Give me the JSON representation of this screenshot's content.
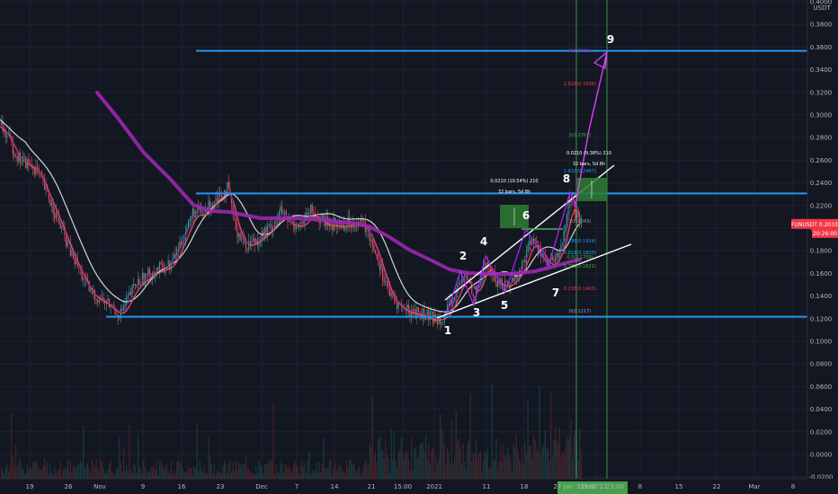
{
  "chart_data": {
    "type": "candlestick",
    "title": "",
    "y_axis": {
      "min": -0.02,
      "max": 0.41,
      "currency": "USDT",
      "tick_labels": [
        "0.4000",
        "0.3800",
        "0.3600",
        "0.3400",
        "0.3200",
        "0.3000",
        "0.2800",
        "0.2600",
        "0.2400",
        "0.2200",
        "0.2000",
        "0.1800",
        "0.1600",
        "0.1400",
        "0.1200",
        "0.1000",
        "0.0800",
        "0.0600",
        "0.0400",
        "0.0200",
        "0.0000",
        "-0.0200"
      ]
    },
    "x_axis": {
      "tick_labels": [
        "19",
        "26",
        "Nov",
        "9",
        "16",
        "23",
        "Dec",
        "7",
        "14",
        "21",
        "15:00",
        "2021",
        "11",
        "18",
        "27 Jan '21",
        "15:00",
        "Feb '21",
        "23:00",
        "8",
        "15",
        "22",
        "Mar",
        "8"
      ]
    },
    "horizontal_levels": [
      {
        "value": 0.3566,
        "label": "0.3566",
        "color": "#2196f3"
      },
      {
        "value": 0.2307,
        "label": "0.2307",
        "color": "#2196f3"
      },
      {
        "value": 0.1217,
        "label": "0.1217",
        "color": "#2196f3"
      }
    ],
    "current_price": {
      "value": 0.2033,
      "label": "FUNUSDT 0.2033",
      "countdown": "20:26:00",
      "color": "#f23645"
    },
    "wave_labels": [
      {
        "text": "1",
        "date": "2021-01-04",
        "price": 0.105
      },
      {
        "text": "2",
        "date": "2021-01-10",
        "price": 0.172
      },
      {
        "text": "3",
        "date": "2021-01-12",
        "price": 0.115
      },
      {
        "text": "4",
        "date": "2021-01-16",
        "price": 0.185
      },
      {
        "text": "5",
        "date": "2021-01-19",
        "price": 0.12
      },
      {
        "text": "6",
        "date": "2021-01-20",
        "price": 0.207
      },
      {
        "text": "7",
        "date": "2021-01-24",
        "price": 0.134
      },
      {
        "text": "8",
        "date": "2021-01-25",
        "price": 0.237
      },
      {
        "text": "9",
        "date": "2021-01-26",
        "price": 0.365
      }
    ],
    "annotations": [
      {
        "text": "0.0210 (10.54%) 210"
      },
      {
        "text": "32 bars, 5d 8h"
      },
      {
        "text": "0.0210 (9.38%) 210"
      },
      {
        "text": "32 bars, 5d 8h"
      }
    ],
    "fib_labels": [
      {
        "text": "4(0.3519)",
        "color": "#9c27b0"
      },
      {
        "text": "2.618(0.3206)",
        "color": "#f23645"
      },
      {
        "text": "2(0.2761)",
        "color": "#4caf50"
      },
      {
        "text": "1.618(0.2487)",
        "color": "#2196f3"
      },
      {
        "text": "1(0.2043)",
        "color": "#9e9e9e"
      },
      {
        "text": "0.786(0.1934)",
        "color": "#2196f3"
      },
      {
        "text": "0.618(0.1810)",
        "color": "#00bcd4"
      },
      {
        "text": "0.5(0.1709)",
        "color": "#4caf50"
      },
      {
        "text": "0.382(0.1621)",
        "color": "#4caf50"
      },
      {
        "text": "0.236(0.1403)",
        "color": "#f23645"
      },
      {
        "text": "0(0.1217)",
        "color": "#9e9e9e"
      }
    ],
    "colors": {
      "background": "#131722",
      "up_candle": "#26a69a",
      "down_candle": "#ef5350",
      "ma_long": "#9c27b0",
      "ma_grey": "#d1d4dc",
      "ma_red": "#ef5350",
      "ma_purple_short": "#9c27b0",
      "channel": "#ffffff",
      "projection": "#e040fb",
      "vertical_line": "#4caf50",
      "date_highlight": "#4caf50"
    },
    "x_highlight_labels": [
      "27 Jan '21",
      "15:00",
      "Feb '21",
      "23:00"
    ]
  }
}
